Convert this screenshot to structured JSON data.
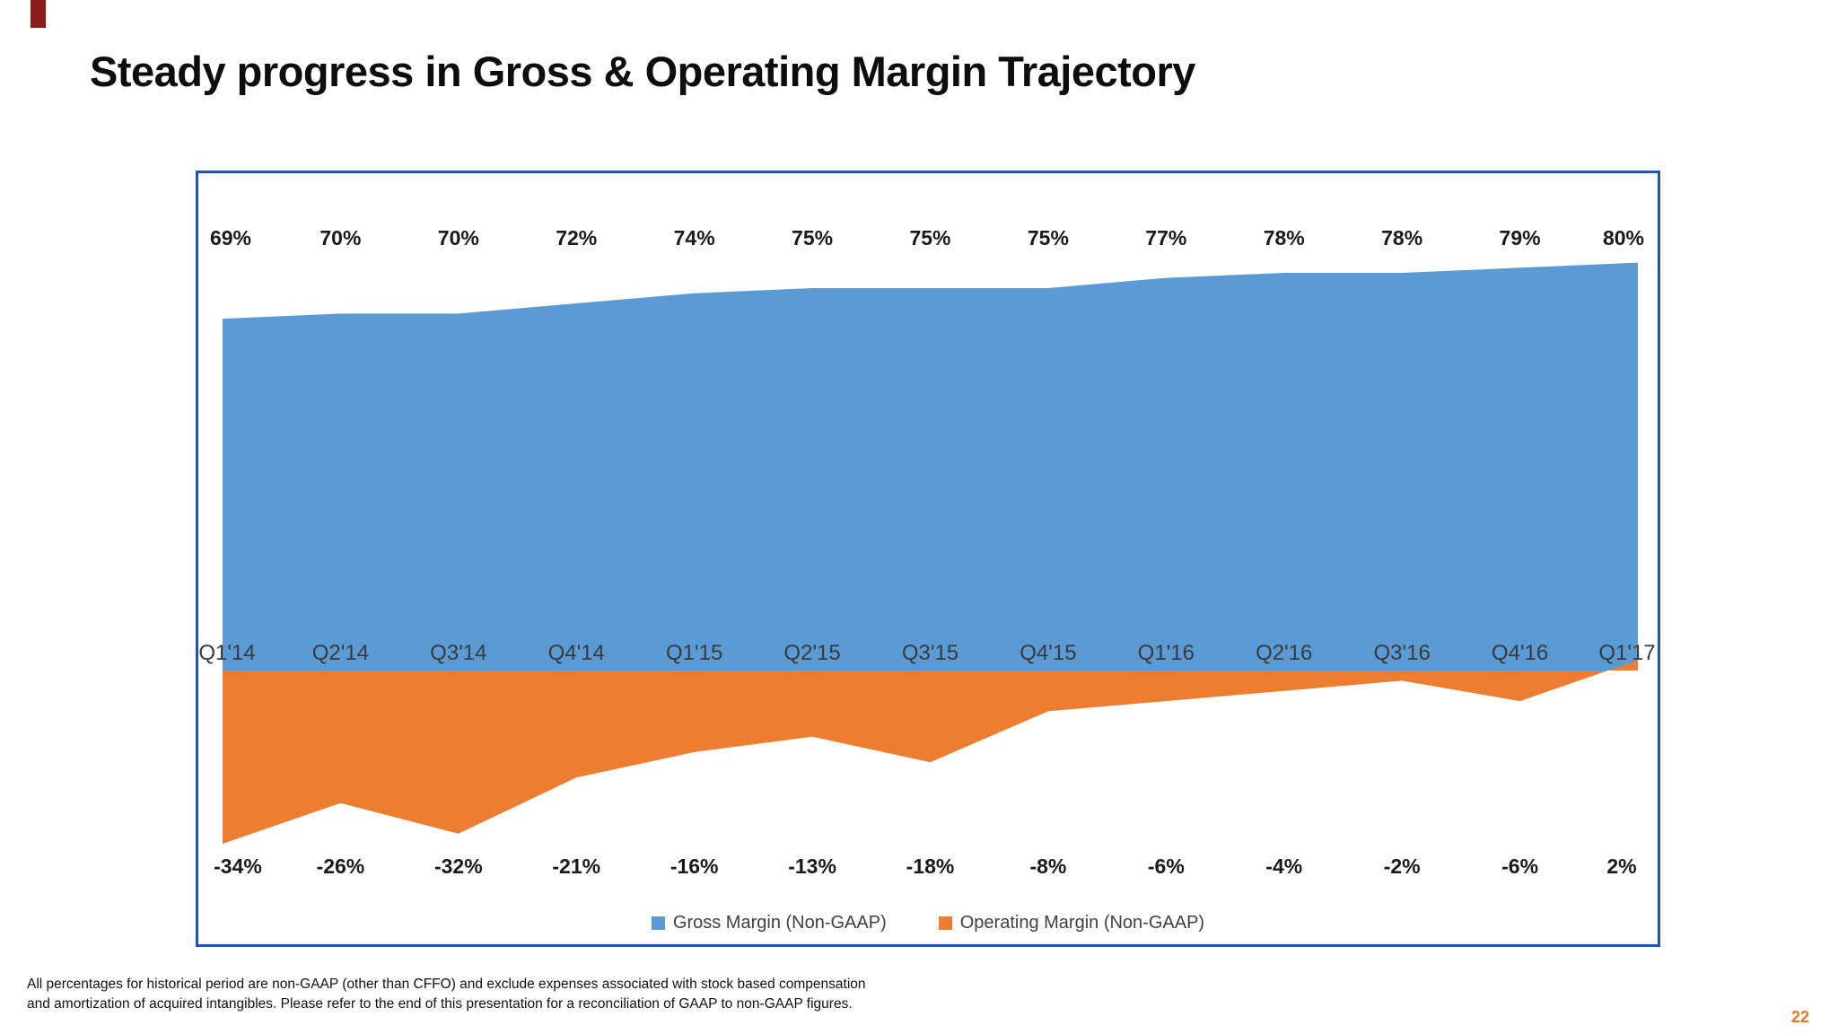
{
  "slide": {
    "title": "Steady progress in Gross & Operating Margin Trajectory",
    "page_number": "22",
    "footnote_line1": "All percentages for historical period are non-GAAP (other than CFFO) and exclude expenses associated with stock based compensation",
    "footnote_line2": "and amortization of acquired intangibles.  Please refer to the end of this presentation for a reconciliation of GAAP to non-GAAP figures.",
    "corner_mark_color": "#8e1b1b"
  },
  "chart_data": {
    "type": "area",
    "title": "",
    "categories": [
      "Q1'14",
      "Q2'14",
      "Q3'14",
      "Q4'14",
      "Q1'15",
      "Q2'15",
      "Q3'15",
      "Q4'15",
      "Q1'16",
      "Q2'16",
      "Q3'16",
      "Q4'16",
      "Q1'17"
    ],
    "series": [
      {
        "name": "Gross Margin (Non-GAAP)",
        "color": "#5b9bd5",
        "values": [
          69,
          70,
          70,
          72,
          74,
          75,
          75,
          75,
          77,
          78,
          78,
          79,
          80
        ]
      },
      {
        "name": "Operating Margin (Non-GAAP)",
        "color": "#ed7d31",
        "values": [
          -34,
          -26,
          -32,
          -21,
          -16,
          -13,
          -18,
          -8,
          -6,
          -4,
          -2,
          -6,
          2
        ]
      }
    ],
    "value_suffix": "%",
    "baseline": 0,
    "ylim": [
      -40,
      90
    ],
    "grid": false,
    "legend_position": "bottom",
    "border_color": "#1a56b5",
    "label_color": "#1a1a1a",
    "axis_label_color": "#3a3a3a"
  }
}
